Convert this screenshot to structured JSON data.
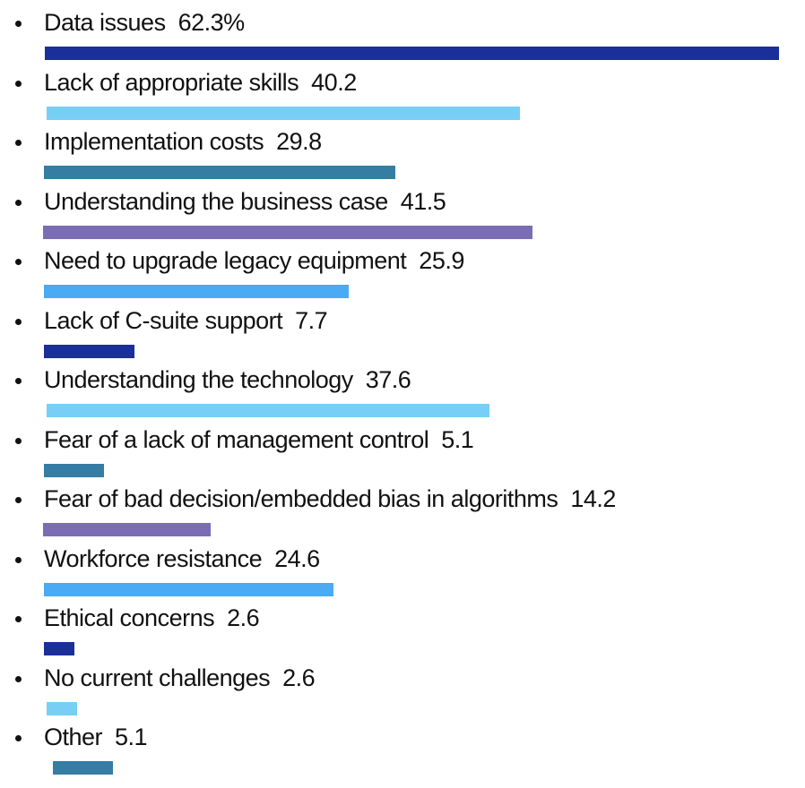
{
  "chart_data": {
    "type": "bar",
    "orientation": "horizontal",
    "title": "",
    "xlabel": "",
    "ylabel": "",
    "xlim": [
      0,
      62.3
    ],
    "grid": false,
    "categories": [
      "Data issues",
      "Lack of appropriate skills",
      "Implementation costs",
      "Understanding the business case",
      "Need to upgrade legacy equipment",
      "Lack of C-suite support",
      "Understanding the technology",
      "Fear of a lack of management control",
      "Fear of bad decision/embedded bias in algorithms",
      "Workforce resistance",
      "Ethical concerns",
      "No current challenges",
      "Other"
    ],
    "values": [
      62.3,
      40.2,
      29.8,
      41.5,
      25.9,
      7.7,
      37.6,
      5.1,
      14.2,
      24.6,
      2.6,
      2.6,
      5.1
    ],
    "value_labels": [
      "62.3%",
      "40.2",
      "29.8",
      "41.5",
      "25.9",
      "7.7",
      "37.6",
      "5.1",
      "14.2",
      "24.6",
      "2.6",
      "2.6",
      "5.1"
    ],
    "colors": [
      "#1a2f9a",
      "#77cff5",
      "#357da3",
      "#7a6db4",
      "#4aabf4",
      "#1a2f9a",
      "#77cff5",
      "#357da3",
      "#7a6db4",
      "#4aabf4",
      "#1a2f9a",
      "#77cff5",
      "#357da3"
    ]
  }
}
